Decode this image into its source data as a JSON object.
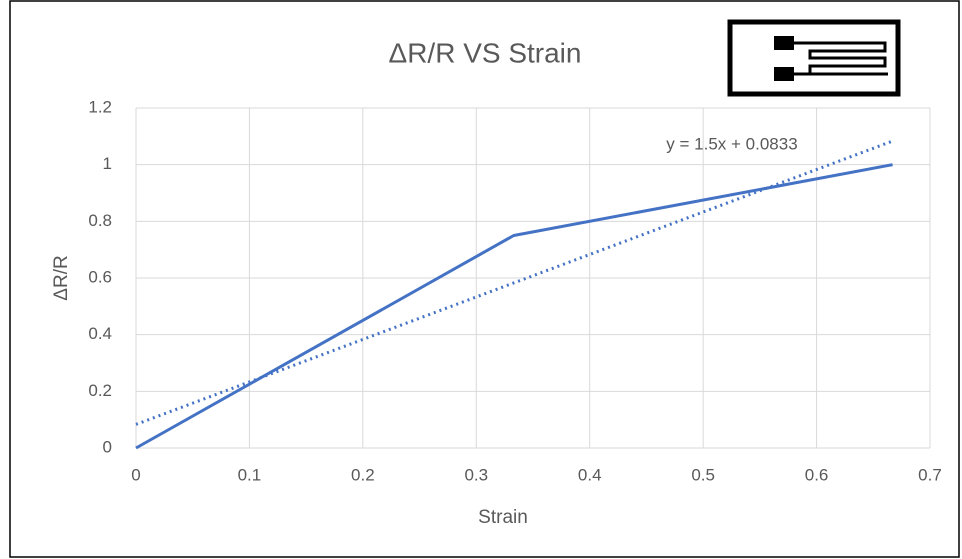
{
  "chart_data": {
    "type": "line",
    "title": "ΔR/R VS Strain",
    "x_label": "Strain",
    "y_label": "ΔR/R",
    "series": [
      {
        "color": "#4472c4",
        "x": [
          0,
          0.333,
          0.667
        ],
        "values": [
          0,
          0.75,
          1
        ]
      }
    ],
    "trendline": {
      "label": "y = 1.5x + 0.0833",
      "color": "#4472c4",
      "x": [
        0,
        0.667
      ],
      "values": [
        0.0833,
        1.0833
      ]
    },
    "xlim": [
      0,
      0.7
    ],
    "xticks": [
      0,
      0.1,
      0.2,
      0.3,
      0.4,
      0.5,
      0.6,
      0.7
    ],
    "ylim": [
      0,
      1.2
    ],
    "yticks": [
      0,
      0.2,
      0.4,
      0.6,
      0.8,
      1,
      1.2
    ],
    "grid": true
  }
}
